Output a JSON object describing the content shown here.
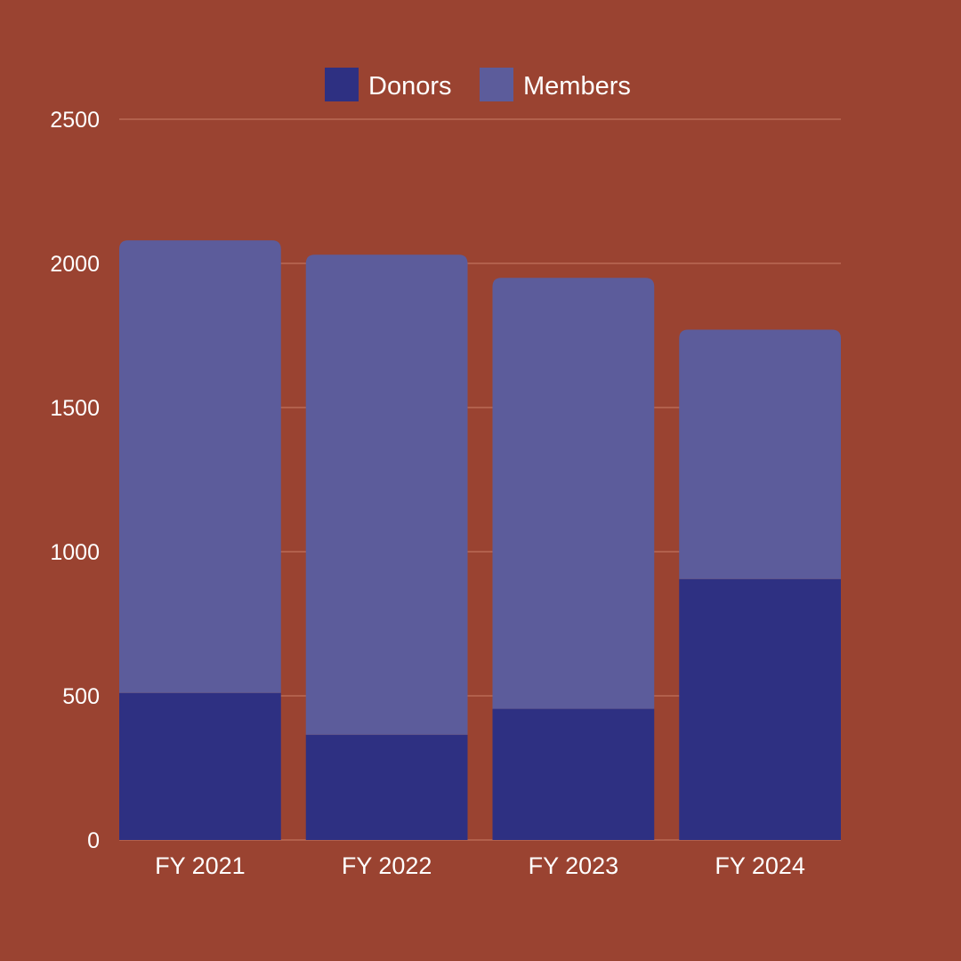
{
  "colors": {
    "background": "#9a4331",
    "gridline": "#b96a55",
    "donors": "#2e3082",
    "members": "#5c5c9b",
    "text": "#ffffff"
  },
  "chart_data": {
    "type": "bar",
    "stacked": true,
    "categories": [
      "FY 2021",
      "FY 2022",
      "FY 2023",
      "FY 2024"
    ],
    "series": [
      {
        "name": "Donors",
        "color": "#2e3082",
        "values": [
          510,
          365,
          455,
          905
        ]
      },
      {
        "name": "Members",
        "color": "#5c5c9b",
        "values": [
          1570,
          1665,
          1495,
          865
        ]
      }
    ],
    "ylim": [
      0,
      2500
    ],
    "yticks": [
      0,
      500,
      1000,
      1500,
      2000,
      2500
    ],
    "grid": true,
    "legend": "top-center",
    "title": "",
    "xlabel": "",
    "ylabel": ""
  }
}
